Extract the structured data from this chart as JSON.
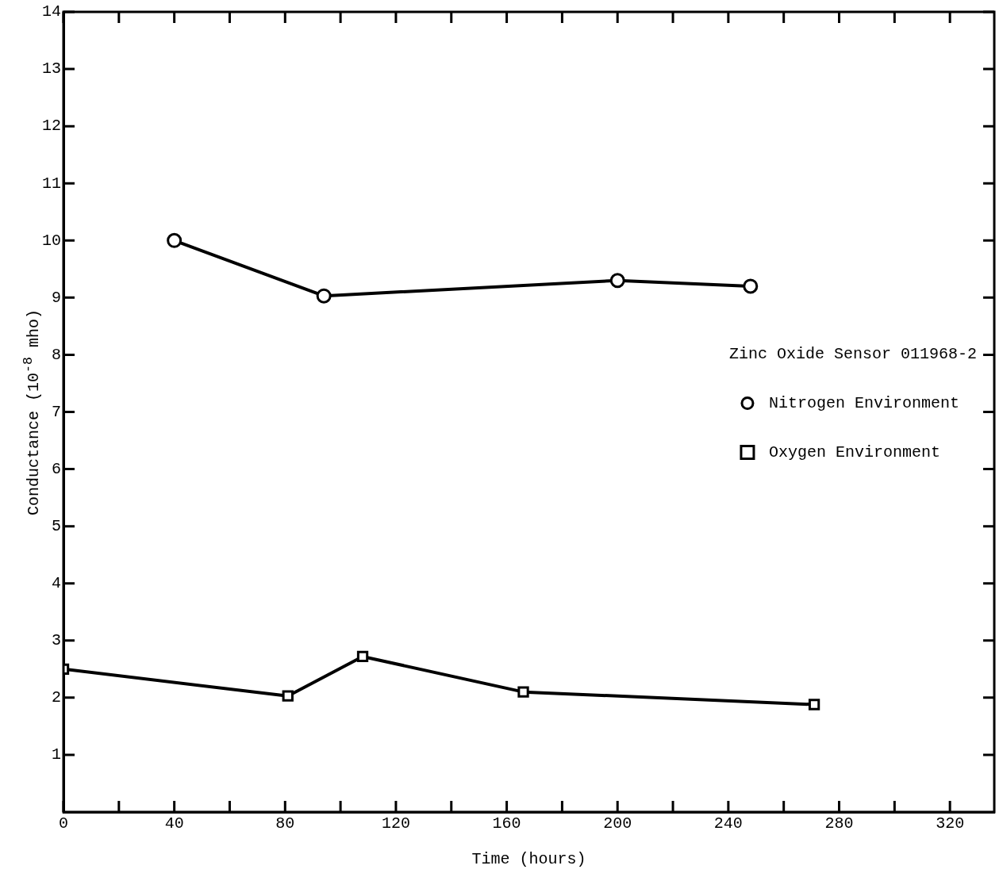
{
  "chart_data": {
    "type": "line",
    "xlabel": "Time (hours)",
    "ylabel": "Conductance (10$^{-8}$ mho)",
    "legend_title": "Zinc Oxide Sensor 011968-2",
    "legend": "right",
    "xlim": [
      0,
      336
    ],
    "xticks": [
      0,
      {
        "value": 20,
        "label": null
      },
      40,
      {
        "value": 60,
        "label": null
      },
      80,
      {
        "value": 100,
        "label": null
      },
      120,
      {
        "value": 140,
        "label": null
      },
      160,
      {
        "value": 180,
        "label": null
      },
      200,
      {
        "value": 220,
        "label": null
      },
      240,
      {
        "value": 260,
        "label": null
      },
      280,
      {
        "value": 300,
        "label": null
      },
      320
    ],
    "ylim": [
      0,
      14
    ],
    "yticks": [
      1,
      2,
      3,
      4,
      5,
      6,
      7,
      8,
      9,
      10,
      11,
      12,
      13,
      14
    ],
    "series": [
      {
        "name": "Nitrogen Environment",
        "color": "#000000",
        "marker": "circle",
        "x": [
          40,
          94,
          200,
          248
        ],
        "values": [
          10,
          9.03,
          9.3,
          9.2
        ]
      },
      {
        "name": "Oxygen Environment",
        "color": "#000000",
        "marker": "square",
        "x": [
          0,
          81,
          108,
          166,
          271
        ],
        "values": [
          2.5,
          2.03,
          2.72,
          2.1,
          1.88
        ]
      }
    ]
  }
}
